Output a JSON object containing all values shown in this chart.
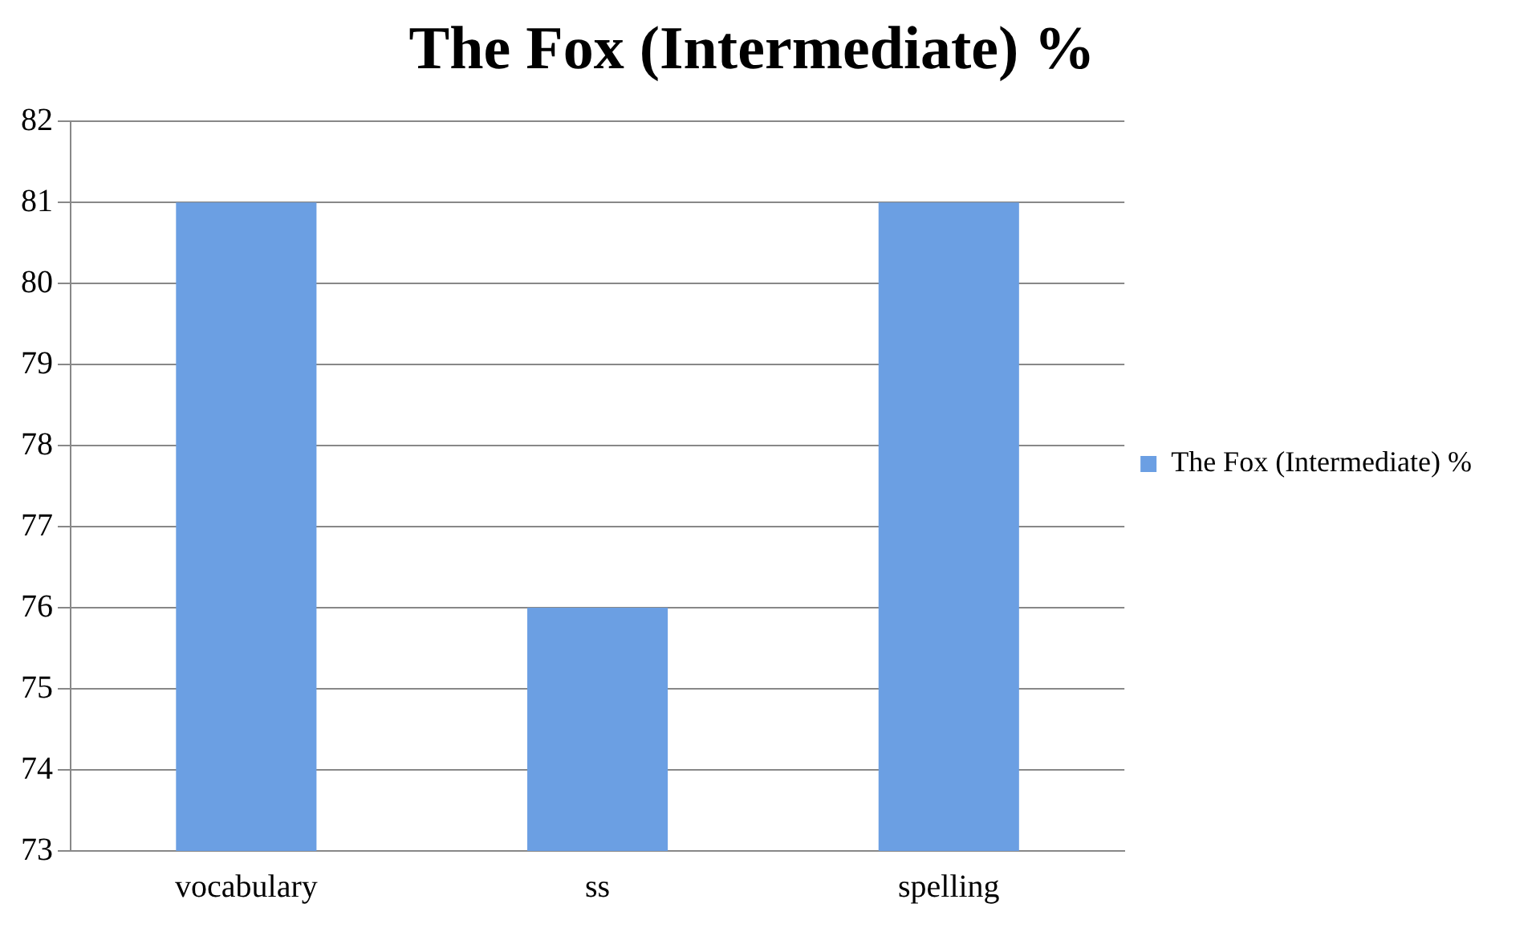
{
  "chart_data": {
    "type": "bar",
    "title": "The Fox (Intermediate) %",
    "categories": [
      "vocabulary",
      "ss",
      "spelling"
    ],
    "series": [
      {
        "name": "The Fox (Intermediate) %",
        "color": "#6b9fe3",
        "values": [
          81,
          76,
          81
        ]
      }
    ],
    "ylim": [
      73,
      82
    ],
    "yticks": [
      73,
      74,
      75,
      76,
      77,
      78,
      79,
      80,
      81,
      82
    ],
    "grid": "y",
    "legend": "right"
  }
}
